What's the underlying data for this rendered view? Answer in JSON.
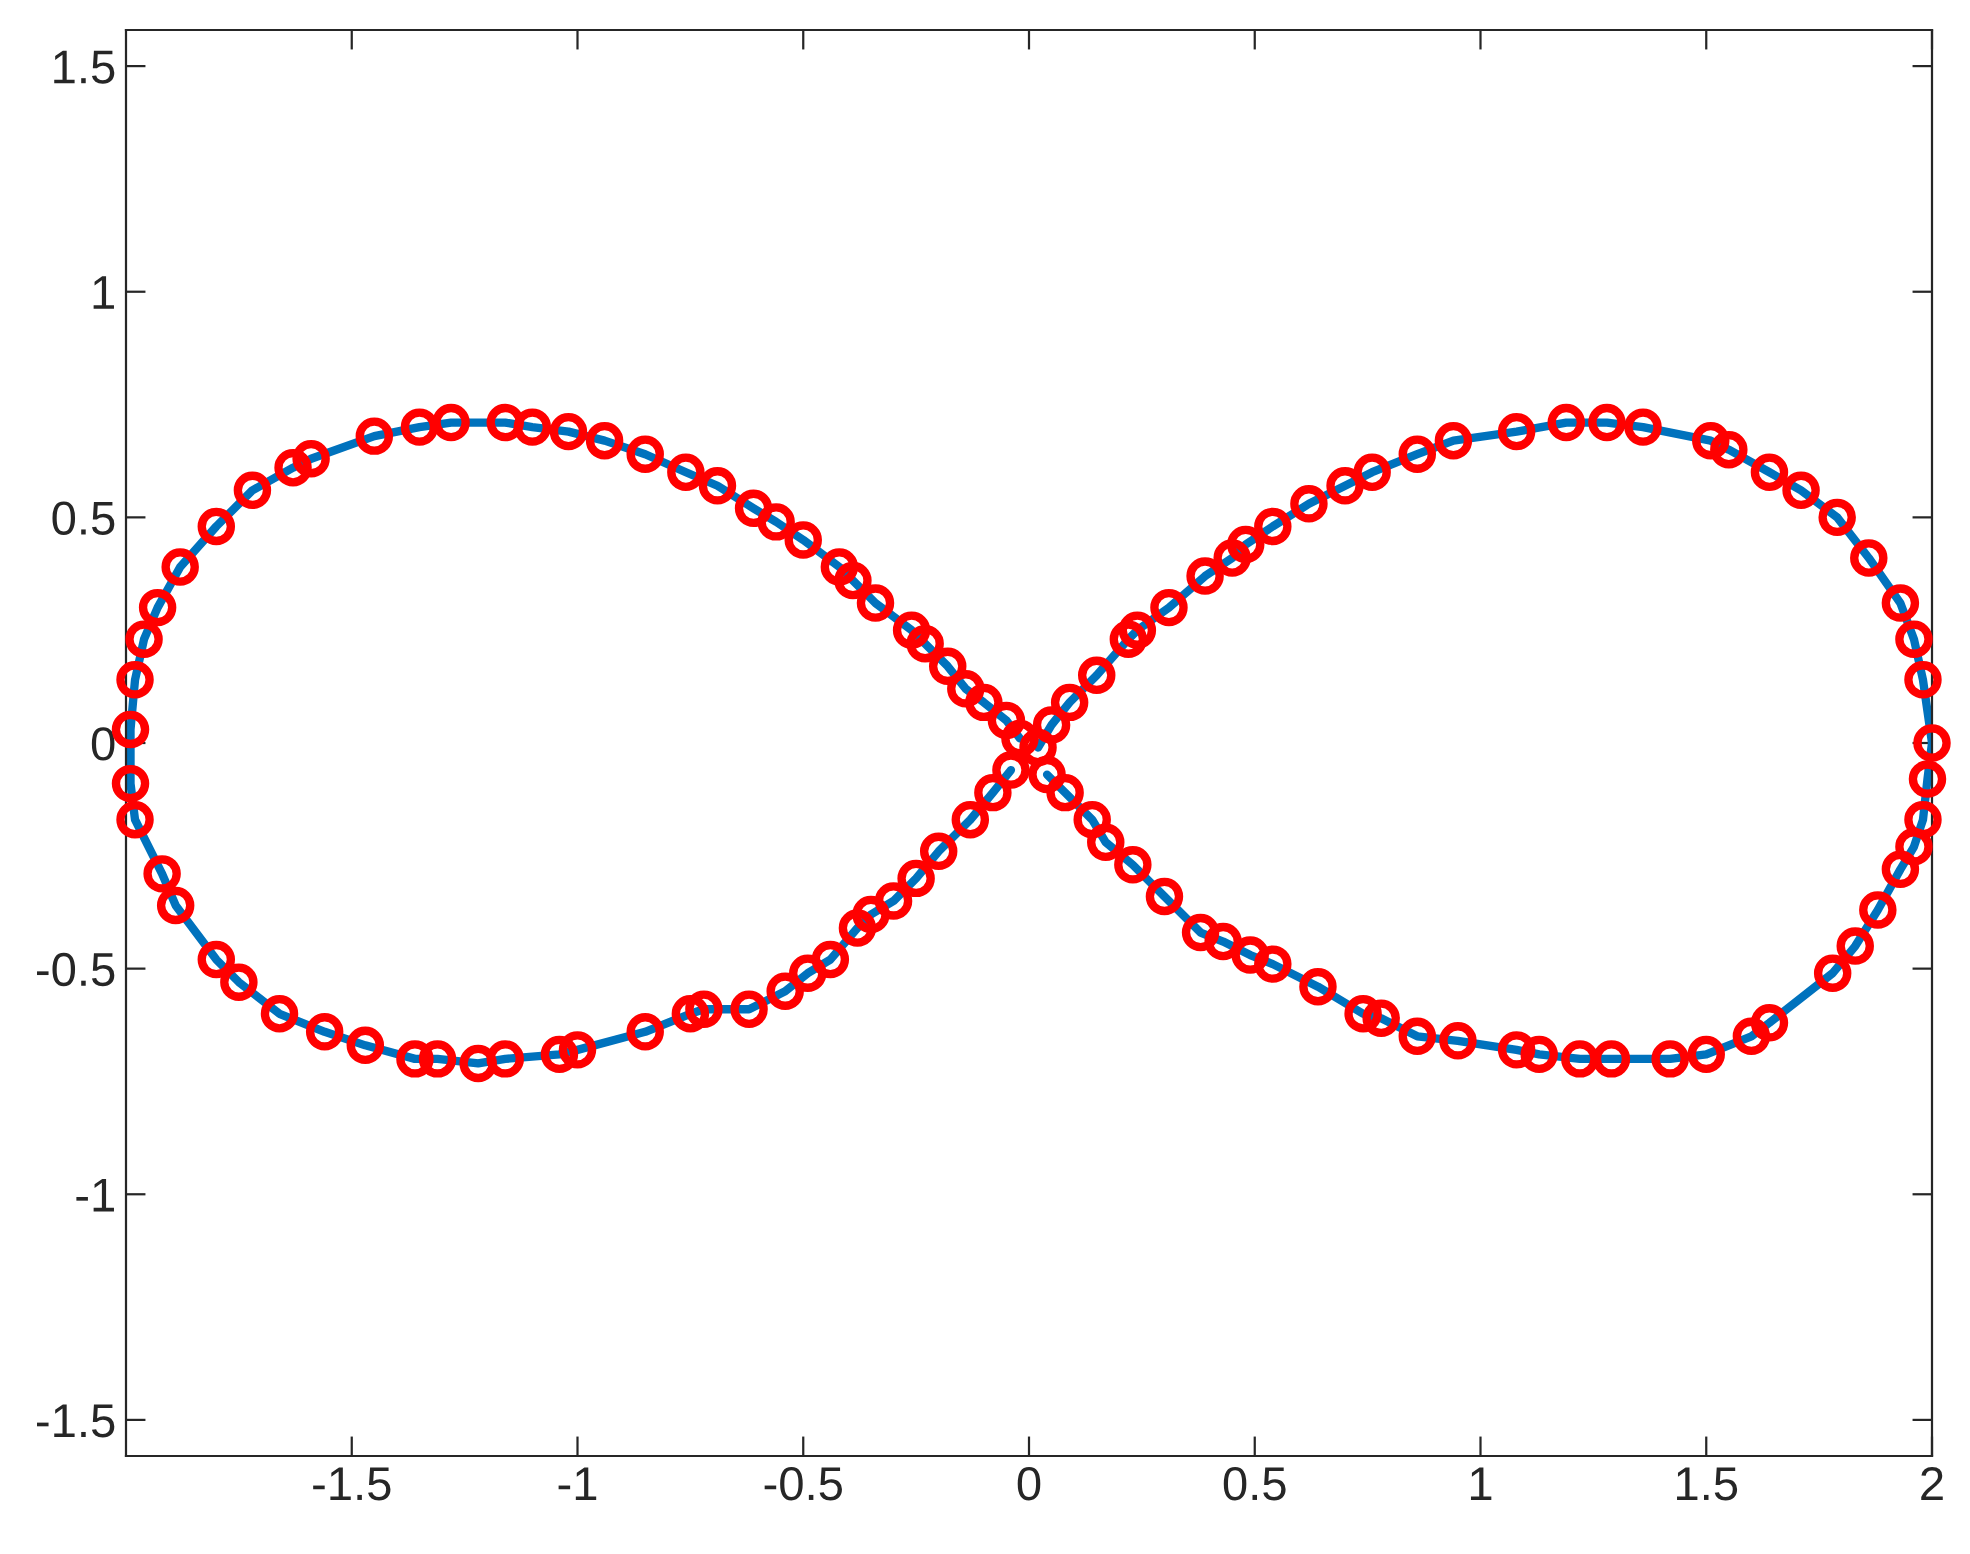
{
  "chart_data": {
    "type": "scatter",
    "xlim": [
      -2,
      2
    ],
    "ylim": [
      -1.58,
      1.58
    ],
    "xticks": [
      -1.5,
      -1,
      -0.5,
      0,
      0.5,
      1,
      1.5,
      2
    ],
    "yticks": [
      -1.5,
      -1,
      -0.5,
      0,
      0.5,
      1,
      1.5
    ],
    "grid": false,
    "legend": false,
    "series": [
      {
        "type": "line",
        "color": "#0072bd",
        "line_style": "solid",
        "marker": "none",
        "x": [
          -0.04,
          -0.08,
          -0.13,
          -0.2,
          -0.25,
          -0.3,
          -0.35,
          -0.38,
          -0.44,
          -0.49,
          -0.54,
          -0.62,
          -0.72,
          -0.75,
          -0.85,
          -1.0,
          -1.04,
          -1.16,
          -1.22,
          -1.31,
          -1.36,
          -1.47,
          -1.56,
          -1.66,
          -1.75,
          -1.8,
          -1.89,
          -1.92,
          -1.98,
          -1.99,
          -1.99,
          -1.98,
          -1.96,
          -1.93,
          -1.88,
          -1.8,
          -1.72,
          -1.63,
          -1.59,
          -1.45,
          -1.35,
          -1.28,
          -1.16,
          -1.1,
          -1.02,
          -0.94,
          -0.85,
          -0.76,
          -0.69,
          -0.61,
          -0.56,
          -0.5,
          -0.42,
          -0.39,
          -0.34,
          -0.26,
          -0.23,
          -0.18,
          -0.14,
          -0.1,
          -0.05,
          -0.02
        ],
        "values": [
          -0.06,
          -0.11,
          -0.17,
          -0.24,
          -0.3,
          -0.35,
          -0.38,
          -0.41,
          -0.48,
          -0.51,
          -0.55,
          -0.59,
          -0.59,
          -0.6,
          -0.64,
          -0.68,
          -0.69,
          -0.7,
          -0.71,
          -0.7,
          -0.7,
          -0.67,
          -0.64,
          -0.6,
          -0.53,
          -0.48,
          -0.36,
          -0.29,
          -0.17,
          -0.09,
          0.03,
          0.14,
          0.23,
          0.3,
          0.39,
          0.48,
          0.56,
          0.61,
          0.63,
          0.68,
          0.7,
          0.71,
          0.71,
          0.7,
          0.69,
          0.67,
          0.64,
          0.6,
          0.57,
          0.52,
          0.49,
          0.45,
          0.39,
          0.36,
          0.31,
          0.25,
          0.22,
          0.17,
          0.12,
          0.09,
          0.05,
          0.01
        ]
      },
      {
        "type": "line",
        "color": "#0072bd",
        "line_style": "solid",
        "marker": "none",
        "x": [
          0.02,
          0.05,
          0.09,
          0.15,
          0.22,
          0.24,
          0.31,
          0.39,
          0.45,
          0.48,
          0.54,
          0.62,
          0.7,
          0.76,
          0.86,
          0.94,
          1.08,
          1.19,
          1.28,
          1.36,
          1.51,
          1.55,
          1.64,
          1.71,
          1.79,
          1.86,
          1.93,
          1.96,
          1.98,
          2.0,
          1.99,
          1.98,
          1.96,
          1.93,
          1.88,
          1.83,
          1.78,
          1.64,
          1.6,
          1.5,
          1.42,
          1.29,
          1.22,
          1.13,
          1.08,
          0.95,
          0.86,
          0.78,
          0.74,
          0.64,
          0.54,
          0.49,
          0.43,
          0.38,
          0.3,
          0.23,
          0.17,
          0.14,
          0.08,
          0.04
        ],
        "values": [
          -0.01,
          0.04,
          0.09,
          0.15,
          0.23,
          0.25,
          0.3,
          0.37,
          0.41,
          0.44,
          0.48,
          0.53,
          0.57,
          0.6,
          0.64,
          0.67,
          0.69,
          0.71,
          0.71,
          0.7,
          0.67,
          0.65,
          0.6,
          0.56,
          0.5,
          0.41,
          0.31,
          0.23,
          0.14,
          0.0,
          -0.08,
          -0.17,
          -0.23,
          -0.28,
          -0.37,
          -0.45,
          -0.51,
          -0.62,
          -0.65,
          -0.69,
          -0.7,
          -0.7,
          -0.7,
          -0.69,
          -0.68,
          -0.66,
          -0.65,
          -0.61,
          -0.6,
          -0.54,
          -0.49,
          -0.47,
          -0.44,
          -0.42,
          -0.34,
          -0.27,
          -0.22,
          -0.17,
          -0.11,
          -0.07
        ]
      },
      {
        "color": "#ff0000",
        "marker": "circle",
        "x": [
          -1.99,
          -1.98,
          -1.96,
          -1.93,
          -1.88,
          -1.8,
          -1.72,
          -1.63,
          -1.59,
          -1.45,
          -1.35,
          -1.28,
          -1.16,
          -1.1,
          -1.02,
          -0.94,
          -0.85,
          -0.76,
          -0.69,
          -0.61,
          -0.56,
          -0.5,
          -0.42,
          -0.39,
          -0.34,
          -0.26,
          -0.23,
          -0.18,
          -0.14,
          -0.1,
          -0.05,
          -0.02,
          0.02,
          0.05,
          0.09,
          0.15,
          0.22,
          0.24,
          0.31,
          0.39,
          0.45,
          0.48,
          0.54,
          0.62,
          0.7,
          0.76,
          0.86,
          0.94,
          1.08,
          1.19,
          1.28,
          1.36,
          1.51,
          1.55,
          1.64,
          1.71,
          1.79,
          1.86,
          1.93,
          1.96,
          1.98,
          2.0,
          1.99,
          1.98,
          1.96,
          1.93,
          1.88,
          1.83,
          1.78,
          1.64,
          1.6,
          1.5,
          1.42,
          1.29,
          1.22,
          1.13,
          1.08,
          0.95,
          0.86,
          0.78,
          0.74,
          0.64,
          0.54,
          0.49,
          0.43,
          0.38,
          0.3,
          0.23,
          0.17,
          0.14,
          0.08,
          0.04,
          -0.04,
          -0.08,
          -0.13,
          -0.2,
          -0.25,
          -0.3,
          -0.35,
          -0.38,
          -0.44,
          -0.49,
          -0.54,
          -0.62,
          -0.72,
          -0.75,
          -0.85,
          -1.0,
          -1.04,
          -1.16,
          -1.22,
          -1.31,
          -1.36,
          -1.47,
          -1.56,
          -1.66,
          -1.75,
          -1.8,
          -1.89,
          -1.92,
          -1.98,
          -1.99
        ],
        "values": [
          0.03,
          0.14,
          0.23,
          0.3,
          0.39,
          0.48,
          0.56,
          0.61,
          0.63,
          0.68,
          0.7,
          0.71,
          0.71,
          0.7,
          0.69,
          0.67,
          0.64,
          0.6,
          0.57,
          0.52,
          0.49,
          0.45,
          0.39,
          0.36,
          0.31,
          0.25,
          0.22,
          0.17,
          0.12,
          0.09,
          0.05,
          0.01,
          -0.01,
          0.04,
          0.09,
          0.15,
          0.23,
          0.25,
          0.3,
          0.37,
          0.41,
          0.44,
          0.48,
          0.53,
          0.57,
          0.6,
          0.64,
          0.67,
          0.69,
          0.71,
          0.71,
          0.7,
          0.67,
          0.65,
          0.6,
          0.56,
          0.5,
          0.41,
          0.31,
          0.23,
          0.14,
          0.0,
          -0.08,
          -0.17,
          -0.23,
          -0.28,
          -0.37,
          -0.45,
          -0.51,
          -0.62,
          -0.65,
          -0.69,
          -0.7,
          -0.7,
          -0.7,
          -0.69,
          -0.68,
          -0.66,
          -0.65,
          -0.61,
          -0.6,
          -0.54,
          -0.49,
          -0.47,
          -0.44,
          -0.42,
          -0.34,
          -0.27,
          -0.22,
          -0.17,
          -0.11,
          -0.07,
          -0.06,
          -0.11,
          -0.17,
          -0.24,
          -0.3,
          -0.35,
          -0.38,
          -0.41,
          -0.48,
          -0.51,
          -0.55,
          -0.59,
          -0.59,
          -0.6,
          -0.64,
          -0.68,
          -0.69,
          -0.7,
          -0.71,
          -0.7,
          -0.7,
          -0.67,
          -0.64,
          -0.6,
          -0.53,
          -0.48,
          -0.36,
          -0.29,
          -0.17,
          -0.09
        ]
      }
    ]
  }
}
